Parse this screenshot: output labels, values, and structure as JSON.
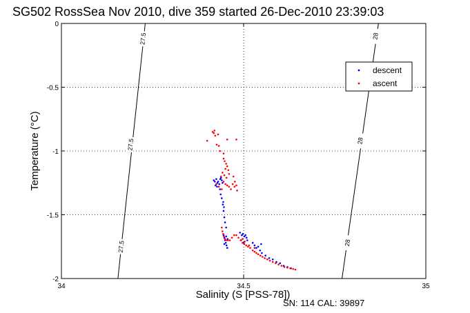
{
  "chart_data": {
    "type": "scatter",
    "title": "SG502 RossSea Nov 2010, dive 359 started 26-Dec-2010 23:39:03",
    "xlabel": "Salinity (S [PSS-78])",
    "ylabel": "Temperature (°C)",
    "xlim": [
      34,
      35
    ],
    "ylim": [
      -2,
      0
    ],
    "x_ticks": [
      "34",
      "34.5",
      "35"
    ],
    "y_ticks": [
      "0",
      "-0.5",
      "-1",
      "-1.5",
      "-2"
    ],
    "grid": true,
    "legend_position": "top-right",
    "footer": "SN: 114  CAL: 39897",
    "contours": [
      {
        "label": "27.5",
        "points": [
          [
            34.155,
            -2.0
          ],
          [
            34.23,
            0.0
          ]
        ],
        "label_positions": [
          [
            34.224,
            -0.12
          ],
          [
            34.19,
            -0.95
          ],
          [
            34.164,
            -1.75
          ]
        ]
      },
      {
        "label": "28",
        "points": [
          [
            34.77,
            -2.0
          ],
          [
            34.87,
            0.0
          ]
        ],
        "label_positions": [
          [
            34.862,
            -0.1
          ],
          [
            34.82,
            -0.92
          ],
          [
            34.785,
            -1.72
          ]
        ]
      }
    ],
    "series": [
      {
        "name": "descent",
        "color": "#0000ff",
        "points": [
          [
            34.418,
            -1.23
          ],
          [
            34.421,
            -1.24
          ],
          [
            34.425,
            -1.22
          ],
          [
            34.428,
            -1.25
          ],
          [
            34.43,
            -1.24
          ],
          [
            34.433,
            -1.26
          ],
          [
            34.436,
            -1.22
          ],
          [
            34.438,
            -1.21
          ],
          [
            34.44,
            -1.23
          ],
          [
            34.423,
            -1.27
          ],
          [
            34.427,
            -1.28
          ],
          [
            34.442,
            -1.25
          ],
          [
            34.435,
            -1.3
          ],
          [
            34.437,
            -1.34
          ],
          [
            34.44,
            -1.37
          ],
          [
            34.443,
            -1.42
          ],
          [
            34.445,
            -1.47
          ],
          [
            34.447,
            -1.52
          ],
          [
            34.449,
            -1.56
          ],
          [
            34.452,
            -1.6
          ],
          [
            34.446,
            -1.44
          ],
          [
            34.444,
            -1.4
          ],
          [
            34.445,
            -1.66
          ],
          [
            34.447,
            -1.68
          ],
          [
            34.449,
            -1.7
          ],
          [
            34.451,
            -1.72
          ],
          [
            34.453,
            -1.74
          ],
          [
            34.455,
            -1.76
          ],
          [
            34.447,
            -1.73
          ],
          [
            34.452,
            -1.67
          ],
          [
            34.456,
            -1.69
          ],
          [
            34.49,
            -1.64
          ],
          [
            34.495,
            -1.66
          ],
          [
            34.498,
            -1.65
          ],
          [
            34.502,
            -1.67
          ],
          [
            34.505,
            -1.66
          ],
          [
            34.508,
            -1.68
          ],
          [
            34.51,
            -1.7
          ],
          [
            34.5,
            -1.72
          ],
          [
            34.493,
            -1.7
          ],
          [
            34.525,
            -1.72
          ],
          [
            34.53,
            -1.74
          ],
          [
            34.535,
            -1.76
          ],
          [
            34.54,
            -1.75
          ],
          [
            34.545,
            -1.78
          ],
          [
            34.55,
            -1.8
          ],
          [
            34.548,
            -1.73
          ],
          [
            34.56,
            -1.82
          ],
          [
            34.57,
            -1.84
          ],
          [
            34.58,
            -1.85
          ],
          [
            34.59,
            -1.87
          ],
          [
            34.6,
            -1.88
          ],
          [
            34.61,
            -1.9
          ],
          [
            34.62,
            -1.91
          ],
          [
            34.63,
            -1.92
          ]
        ]
      },
      {
        "name": "ascent",
        "color": "#ff0000",
        "points": [
          [
            34.415,
            -0.85
          ],
          [
            34.418,
            -0.86
          ],
          [
            34.42,
            -0.84
          ],
          [
            34.422,
            -0.88
          ],
          [
            34.43,
            -0.87
          ],
          [
            34.426,
            -0.95
          ],
          [
            34.432,
            -0.96
          ],
          [
            34.4,
            -0.92
          ],
          [
            34.455,
            -0.91
          ],
          [
            34.48,
            -0.91
          ],
          [
            34.435,
            -1.0
          ],
          [
            34.445,
            -1.02
          ],
          [
            34.445,
            -1.06
          ],
          [
            34.448,
            -1.08
          ],
          [
            34.452,
            -1.1
          ],
          [
            34.455,
            -1.12
          ],
          [
            34.45,
            -1.14
          ],
          [
            34.458,
            -1.15
          ],
          [
            34.46,
            -1.18
          ],
          [
            34.442,
            -1.17
          ],
          [
            34.447,
            -1.19
          ],
          [
            34.453,
            -1.21
          ],
          [
            34.438,
            -1.2
          ],
          [
            34.445,
            -1.24
          ],
          [
            34.45,
            -1.26
          ],
          [
            34.455,
            -1.27
          ],
          [
            34.46,
            -1.28
          ],
          [
            34.465,
            -1.3
          ],
          [
            34.47,
            -1.26
          ],
          [
            34.475,
            -1.28
          ],
          [
            34.48,
            -1.27
          ],
          [
            34.476,
            -1.24
          ],
          [
            34.482,
            -1.31
          ],
          [
            34.472,
            -1.2
          ],
          [
            34.425,
            -1.26
          ],
          [
            34.432,
            -1.28
          ],
          [
            34.44,
            -1.3
          ],
          [
            34.44,
            -1.6
          ],
          [
            34.442,
            -1.63
          ],
          [
            34.444,
            -1.65
          ],
          [
            34.446,
            -1.67
          ],
          [
            34.449,
            -1.69
          ],
          [
            34.452,
            -1.7
          ],
          [
            34.457,
            -1.7
          ],
          [
            34.462,
            -1.7
          ],
          [
            34.468,
            -1.68
          ],
          [
            34.474,
            -1.66
          ],
          [
            34.48,
            -1.66
          ],
          [
            34.486,
            -1.68
          ],
          [
            34.492,
            -1.7
          ],
          [
            34.497,
            -1.72
          ],
          [
            34.502,
            -1.73
          ],
          [
            34.507,
            -1.74
          ],
          [
            34.512,
            -1.75
          ],
          [
            34.518,
            -1.76
          ],
          [
            34.525,
            -1.78
          ],
          [
            34.53,
            -1.79
          ],
          [
            34.535,
            -1.8
          ],
          [
            34.54,
            -1.81
          ],
          [
            34.546,
            -1.82
          ],
          [
            34.552,
            -1.83
          ],
          [
            34.558,
            -1.84
          ],
          [
            34.565,
            -1.85
          ],
          [
            34.572,
            -1.86
          ],
          [
            34.58,
            -1.87
          ],
          [
            34.588,
            -1.88
          ],
          [
            34.596,
            -1.89
          ],
          [
            34.604,
            -1.9
          ],
          [
            34.612,
            -1.91
          ],
          [
            34.62,
            -1.915
          ],
          [
            34.628,
            -1.92
          ],
          [
            34.636,
            -1.925
          ],
          [
            34.642,
            -1.93
          ],
          [
            34.497,
            -1.69
          ],
          [
            34.503,
            -1.71
          ],
          [
            34.515,
            -1.74
          ],
          [
            34.53,
            -1.76
          ]
        ]
      }
    ]
  }
}
